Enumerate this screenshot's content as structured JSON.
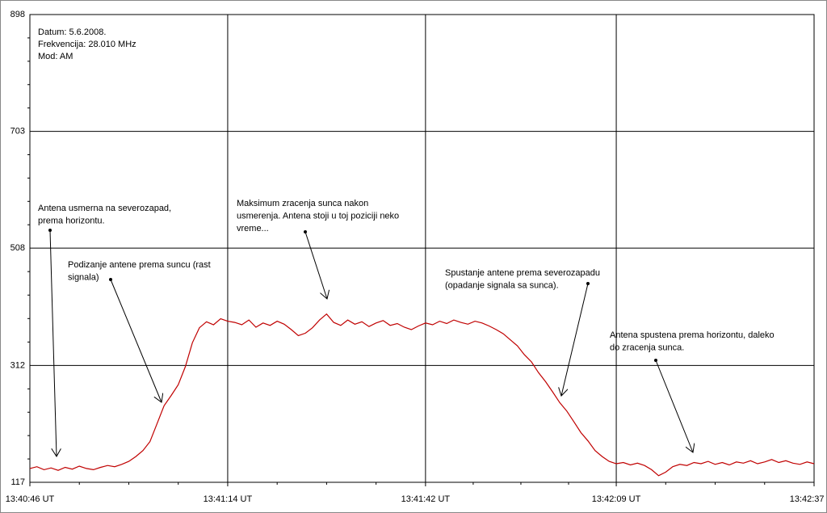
{
  "chart_data": {
    "type": "line",
    "info": [
      "Datum: 5.6.2008.",
      "Frekvencija: 28.010 MHz",
      "Mod: AM"
    ],
    "x": [
      49246,
      49247,
      49248,
      49249,
      49250,
      49251,
      49252,
      49253,
      49254,
      49255,
      49256,
      49257,
      49258,
      49259,
      49260,
      49261,
      49262,
      49263,
      49264,
      49265,
      49266,
      49267,
      49268,
      49269,
      49270,
      49271,
      49272,
      49273,
      49274,
      49275,
      49276,
      49277,
      49278,
      49279,
      49280,
      49281,
      49282,
      49283,
      49284,
      49285,
      49286,
      49287,
      49288,
      49289,
      49290,
      49291,
      49292,
      49293,
      49294,
      49295,
      49296,
      49297,
      49298,
      49299,
      49300,
      49301,
      49302,
      49303,
      49304,
      49305,
      49306,
      49307,
      49308,
      49309,
      49310,
      49311,
      49312,
      49313,
      49314,
      49315,
      49316,
      49317,
      49318,
      49319,
      49320,
      49321,
      49322,
      49323,
      49324,
      49325,
      49326,
      49327,
      49328,
      49329,
      49330,
      49331,
      49332,
      49333,
      49334,
      49335,
      49336,
      49337,
      49338,
      49339,
      49340,
      49341,
      49342,
      49343,
      49344,
      49345,
      49346,
      49347,
      49348,
      49349,
      49350,
      49351,
      49352,
      49353,
      49354,
      49355,
      49356,
      49357
    ],
    "series": [
      {
        "color": "#c00000",
        "values": [
          140,
          143,
          138,
          141,
          137,
          142,
          139,
          144,
          140,
          138,
          142,
          145,
          143,
          147,
          152,
          160,
          170,
          185,
          215,
          245,
          262,
          280,
          310,
          350,
          375,
          385,
          380,
          390,
          386,
          384,
          380,
          388,
          376,
          383,
          379,
          386,
          381,
          372,
          362,
          366,
          375,
          388,
          398,
          384,
          379,
          388,
          381,
          385,
          377,
          383,
          387,
          379,
          382,
          376,
          372,
          378,
          383,
          380,
          386,
          382,
          388,
          384,
          381,
          386,
          383,
          378,
          372,
          365,
          355,
          345,
          330,
          318,
          300,
          285,
          268,
          250,
          236,
          218,
          200,
          186,
          170,
          160,
          152,
          148,
          150,
          146,
          149,
          145,
          138,
          128,
          134,
          143,
          147,
          145,
          150,
          148,
          152,
          147,
          150,
          146,
          151,
          149,
          153,
          148,
          151,
          155,
          150,
          153,
          149,
          147,
          151,
          148
        ]
      }
    ],
    "xlim": [
      49246,
      49357
    ],
    "xticks": [
      {
        "value": 49246,
        "label": "13:40:46 UT"
      },
      {
        "value": 49274,
        "label": "13:41:14 UT"
      },
      {
        "value": 49302,
        "label": "13:41:42 UT"
      },
      {
        "value": 49329,
        "label": "13:42:09 UT"
      },
      {
        "value": 49357,
        "label": "13:42:37 UT"
      }
    ],
    "ylim": [
      117,
      898
    ],
    "yticks": [
      117,
      312,
      508,
      703,
      898
    ],
    "grid": true,
    "annotations": [
      {
        "lines": [
          "Antena usmerna na severozapad,",
          "prema horizontu."
        ]
      },
      {
        "lines": [
          "Podizanje antene prema suncu (rast",
          "signala)"
        ]
      },
      {
        "lines": [
          "Maksimum zracenja sunca nakon",
          "usmerenja. Antena stoji u toj poziciji neko",
          "vreme..."
        ]
      },
      {
        "lines": [
          "Spustanje antene prema severozapadu",
          "(opadanje signala sa sunca)."
        ]
      },
      {
        "lines": [
          "Antena spustena prema horizontu, daleko",
          "do zracenja sunca."
        ]
      }
    ]
  }
}
